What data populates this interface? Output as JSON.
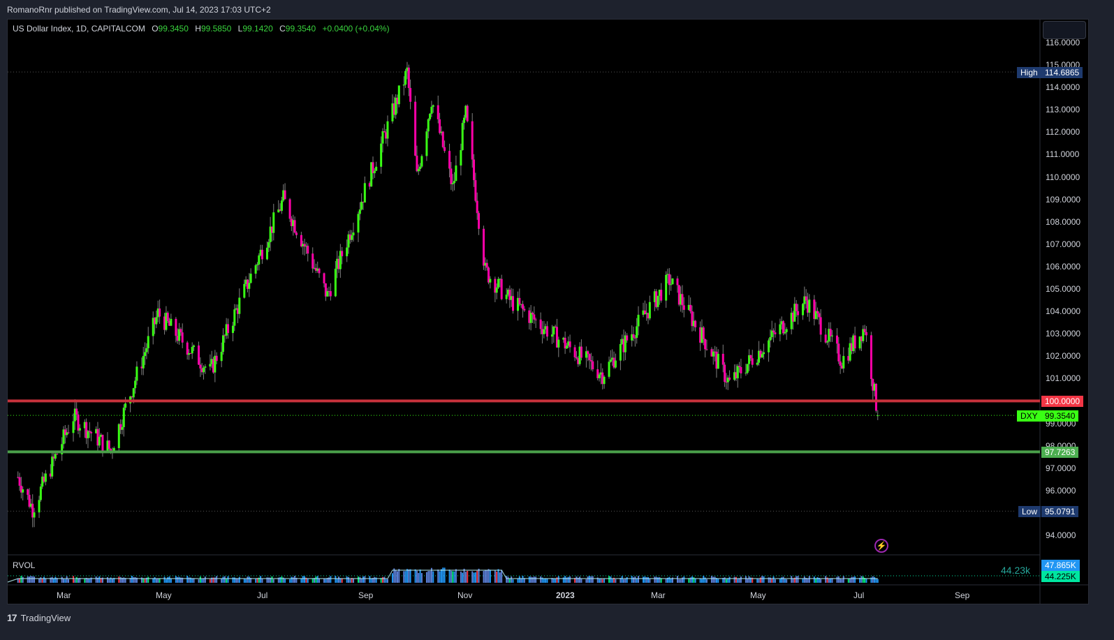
{
  "publisher_line": "RomanoRnr published on TradingView.com, Jul 14, 2023 17:03 UTC+2",
  "legend": {
    "symbol": "US Dollar Index, 1D, CAPITALCOM",
    "open_label": "O",
    "open": "99.3450",
    "high_label": "H",
    "high": "99.5850",
    "low_label": "L",
    "low": "99.1420",
    "close_label": "C",
    "close": "99.3540",
    "change": "+0.0400 (+0.04%)"
  },
  "indicator": {
    "name": "RVOL",
    "value_label": "44.23k"
  },
  "footer": {
    "brand": "TradingView",
    "logo": "17"
  },
  "price_tags": {
    "high": {
      "label": "High",
      "value": "114.6865",
      "color": "#1e3a6e"
    },
    "low": {
      "label": "Low",
      "value": "95.0791",
      "color": "#1e3a6e"
    },
    "last": {
      "label": "DXY",
      "value": "99.3540",
      "color": "#39ff14"
    },
    "resistance": {
      "value": "100.0000",
      "color": "#f23645"
    },
    "support": {
      "value": "97.7263",
      "color": "#4caf50"
    },
    "rvol_upper": {
      "value": "47.865K",
      "color": "#2196f3"
    },
    "rvol_current": {
      "value": "44.225K",
      "color": "#00e6a0"
    }
  },
  "colors": {
    "up": "#39ff14",
    "down": "#ff00a8",
    "wick": "#808080",
    "resistance_line": "#c8323c",
    "support_line": "#4a9f4a",
    "volume": "#2196f3"
  },
  "chart_data": {
    "type": "candlestick",
    "title": "US Dollar Index, 1D, CAPITALCOM",
    "symbol": "DXY",
    "timeframe": "1D",
    "ylim": [
      93.3,
      117.0
    ],
    "y_ticks": [
      "116.0000",
      "115.0000",
      "114.0000",
      "113.0000",
      "112.0000",
      "111.0000",
      "110.0000",
      "109.0000",
      "108.0000",
      "107.0000",
      "106.0000",
      "105.0000",
      "104.0000",
      "103.0000",
      "102.0000",
      "101.0000",
      "100.0000",
      "99.0000",
      "98.0000",
      "97.0000",
      "96.0000",
      "94.0000"
    ],
    "x_ticks": [
      "Mar",
      "May",
      "Jul",
      "Sep",
      "Nov",
      "2023",
      "Mar",
      "May",
      "Jul",
      "Sep"
    ],
    "horizontal_levels": [
      {
        "name": "resistance",
        "value": 100.0
      },
      {
        "name": "support",
        "value": 97.7263
      },
      {
        "name": "period_high",
        "value": 114.6865
      },
      {
        "name": "period_low",
        "value": 95.0791
      },
      {
        "name": "last_price",
        "value": 99.354
      }
    ],
    "pivots_approx": [
      {
        "date": "2022-02-01",
        "price": 96.6
      },
      {
        "date": "2022-02-10",
        "price": 95.2
      },
      {
        "date": "2022-03-07",
        "price": 99.3
      },
      {
        "date": "2022-03-30",
        "price": 97.8
      },
      {
        "date": "2022-04-28",
        "price": 103.9
      },
      {
        "date": "2022-05-30",
        "price": 101.3
      },
      {
        "date": "2022-07-14",
        "price": 109.0
      },
      {
        "date": "2022-08-10",
        "price": 104.7
      },
      {
        "date": "2022-09-28",
        "price": 114.7
      },
      {
        "date": "2022-10-04",
        "price": 110.0
      },
      {
        "date": "2022-10-13",
        "price": 113.5
      },
      {
        "date": "2022-10-26",
        "price": 109.5
      },
      {
        "date": "2022-11-03",
        "price": 112.8
      },
      {
        "date": "2022-11-15",
        "price": 105.8
      },
      {
        "date": "2022-11-30",
        "price": 104.5
      },
      {
        "date": "2023-01-26",
        "price": 101.2
      },
      {
        "date": "2023-03-08",
        "price": 105.4
      },
      {
        "date": "2023-04-14",
        "price": 100.8
      },
      {
        "date": "2023-05-31",
        "price": 104.5
      },
      {
        "date": "2023-06-22",
        "price": 101.8
      },
      {
        "date": "2023-07-06",
        "price": 103.3
      },
      {
        "date": "2023-07-14",
        "price": 99.354
      }
    ],
    "last_candle": {
      "open": 99.345,
      "high": 99.585,
      "low": 99.142,
      "close": 99.354
    },
    "volume_indicator": {
      "name": "RVOL",
      "current": 44225,
      "upper": 47865
    },
    "grid": false,
    "legend_position": "top-left"
  }
}
